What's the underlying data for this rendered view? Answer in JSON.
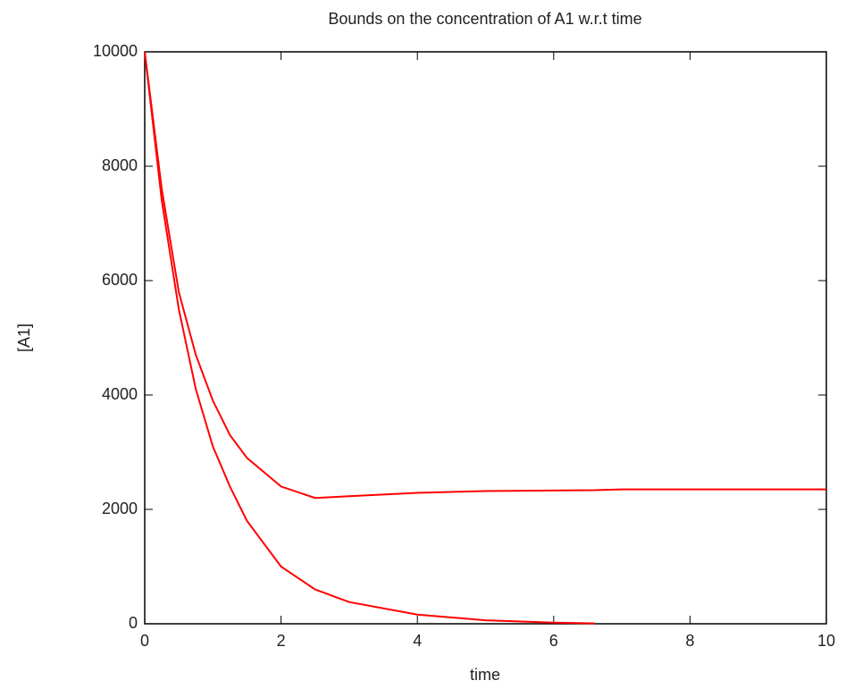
{
  "chart_data": {
    "type": "line",
    "title": "Bounds on the concentration of A1 w.r.t time",
    "x_label": "time",
    "y_label": "[A1]",
    "x": [
      0,
      0.25,
      0.5,
      0.75,
      1,
      1.25,
      1.5,
      2,
      2.5,
      3,
      4,
      5,
      6,
      6.6,
      7,
      8,
      9,
      10
    ],
    "series": [
      {
        "color": "#ff0000",
        "values": [
          10000,
          7600,
          5800,
          4700,
          3900,
          3300,
          2900,
          2400,
          2200,
          2230,
          2290,
          2320,
          2330,
          2335,
          2350,
          2350,
          2350,
          2350
        ]
      },
      {
        "color": "#ff0000",
        "values": [
          10000,
          7400,
          5500,
          4100,
          3100,
          2400,
          1800,
          1000,
          600,
          380,
          160,
          60,
          20,
          5,
          null,
          null,
          null,
          null
        ]
      }
    ],
    "xlim": [
      0,
      10
    ],
    "ylim": [
      0,
      10000
    ],
    "xticks": [
      0,
      2,
      4,
      6,
      8,
      10
    ],
    "yticks": [
      0,
      2000,
      4000,
      6000,
      8000,
      10000
    ],
    "grid": false
  }
}
